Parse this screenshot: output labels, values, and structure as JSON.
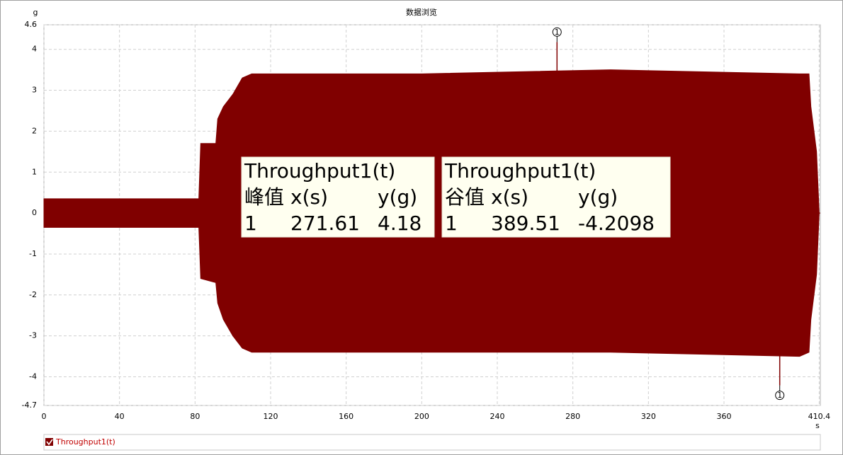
{
  "chart_data": {
    "type": "envelope",
    "title": "数据浏览",
    "y_unit": "g",
    "x_unit": "s",
    "xlim": [
      0,
      410.4
    ],
    "ylim": [
      -4.7,
      4.6
    ],
    "xticks": [
      0,
      40,
      80,
      120,
      160,
      200,
      240,
      280,
      320,
      360,
      410.4
    ],
    "yticks": [
      -4.7,
      -4,
      -3,
      -2,
      -1,
      0,
      1,
      2,
      3,
      4,
      4.6
    ],
    "grid": true,
    "series": [
      {
        "name": "Throughput1(t)",
        "color": "#800000",
        "x": [
          0,
          82,
          83,
          91,
          92,
          95,
          100,
          105,
          110,
          200,
          300,
          400,
          405,
          406,
          409,
          410.4
        ],
        "upper": [
          0.35,
          0.35,
          1.7,
          1.7,
          2.3,
          2.6,
          2.9,
          3.3,
          3.4,
          3.4,
          3.5,
          3.4,
          3.4,
          2.6,
          1.5,
          0
        ],
        "lower": [
          -0.35,
          -0.35,
          -1.6,
          -1.7,
          -2.2,
          -2.6,
          -3.0,
          -3.3,
          -3.4,
          -3.4,
          -3.4,
          -3.5,
          -3.4,
          -2.6,
          -1.5,
          0
        ]
      }
    ],
    "peaks": [
      {
        "title": "Throughput1(t)",
        "kind": "峰值",
        "x_header": "x(s)",
        "y_header": "y(g)",
        "index": 1,
        "x": 271.61,
        "y": 4.18
      },
      {
        "title": "Throughput1(t)",
        "kind": "谷值",
        "x_header": "x(s)",
        "y_header": "y(g)",
        "index": 1,
        "x": 389.51,
        "y": -4.2098
      }
    ]
  }
}
